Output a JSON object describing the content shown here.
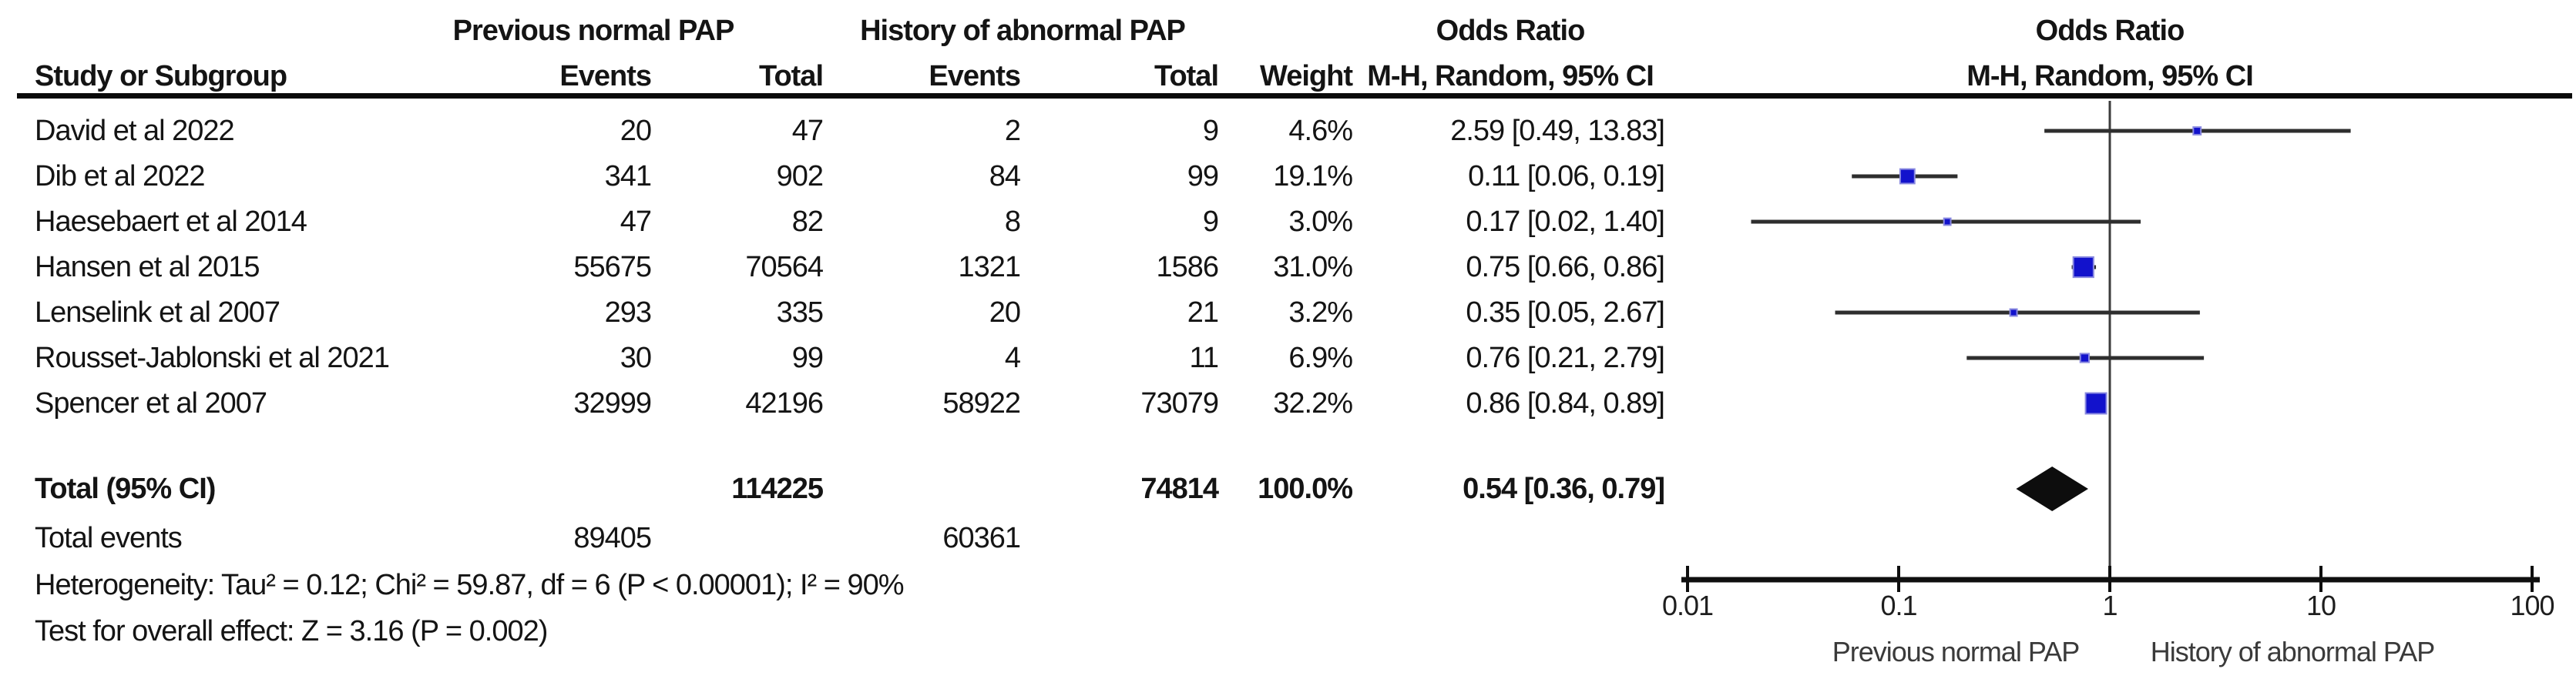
{
  "header": {
    "study_col": "Study or Subgroup",
    "group1_title": "Previous normal PAP",
    "group2_title": "History of abnormal PAP",
    "events_col1": "Events",
    "total_col1": "Total",
    "events_col2": "Events",
    "total_col2": "Total",
    "weight_col": "Weight",
    "or_text_title": "Odds Ratio",
    "or_text_sub": "M-H, Random, 95% CI",
    "or_plot_title": "Odds Ratio",
    "or_plot_sub": "M-H, Random, 95% CI"
  },
  "rows": [
    {
      "study": "David et al 2022",
      "ev1": "20",
      "t1": "47",
      "ev2": "2",
      "t2": "9",
      "weight": "4.6%",
      "or": "2.59 [0.49, 13.83]"
    },
    {
      "study": "Dib et al 2022",
      "ev1": "341",
      "t1": "902",
      "ev2": "84",
      "t2": "99",
      "weight": "19.1%",
      "or": "0.11 [0.06, 0.19]"
    },
    {
      "study": "Haesebaert et al 2014",
      "ev1": "47",
      "t1": "82",
      "ev2": "8",
      "t2": "9",
      "weight": "3.0%",
      "or": "0.17 [0.02, 1.40]"
    },
    {
      "study": "Hansen et al 2015",
      "ev1": "55675",
      "t1": "70564",
      "ev2": "1321",
      "t2": "1586",
      "weight": "31.0%",
      "or": "0.75 [0.66, 0.86]"
    },
    {
      "study": "Lenselink et al 2007",
      "ev1": "293",
      "t1": "335",
      "ev2": "20",
      "t2": "21",
      "weight": "3.2%",
      "or": "0.35 [0.05, 2.67]"
    },
    {
      "study": "Rousset-Jablonski et al 2021",
      "ev1": "30",
      "t1": "99",
      "ev2": "4",
      "t2": "11",
      "weight": "6.9%",
      "or": "0.76 [0.21, 2.79]"
    },
    {
      "study": "Spencer et al 2007",
      "ev1": "32999",
      "t1": "42196",
      "ev2": "58922",
      "t2": "73079",
      "weight": "32.2%",
      "or": "0.86 [0.84, 0.89]"
    }
  ],
  "totals": {
    "label": "Total (95% CI)",
    "t1": "114225",
    "t2": "74814",
    "weight": "100.0%",
    "or": "0.54 [0.36, 0.79]",
    "events_label": "Total events",
    "ev1": "89405",
    "ev2": "60361",
    "heterogeneity": "Heterogeneity: Tau² = 0.12; Chi² = 59.87, df = 6 (P < 0.00001); I² = 90%",
    "overall_effect": "Test for overall effect: Z = 3.16 (P = 0.002)"
  },
  "axis": {
    "tick_labels": [
      "0.01",
      "0.1",
      "1",
      "10",
      "100"
    ],
    "left_label": "Previous normal PAP",
    "right_label": "History of abnormal PAP"
  },
  "colors": {
    "square_fill": "#1212cc",
    "square_border": "#8a8ae0",
    "ci_line": "#2e2e2e",
    "axis_line": "#0f0f0f",
    "diamond": "#0d0d0d",
    "null_line": "#3c3c3c"
  },
  "chart_data": {
    "type": "forest",
    "x_scale": "log10",
    "x_range": [
      0.01,
      100
    ],
    "ticks": [
      0.01,
      0.1,
      1,
      10,
      100
    ],
    "effect_measure": "Odds Ratio, M-H, Random, 95% CI",
    "studies": [
      {
        "name": "David et al 2022",
        "or": 2.59,
        "ci_low": 0.49,
        "ci_high": 13.83,
        "weight_pct": 4.6
      },
      {
        "name": "Dib et al 2022",
        "or": 0.11,
        "ci_low": 0.06,
        "ci_high": 0.19,
        "weight_pct": 19.1
      },
      {
        "name": "Haesebaert et al 2014",
        "or": 0.17,
        "ci_low": 0.02,
        "ci_high": 1.4,
        "weight_pct": 3.0
      },
      {
        "name": "Hansen et al 2015",
        "or": 0.75,
        "ci_low": 0.66,
        "ci_high": 0.86,
        "weight_pct": 31.0
      },
      {
        "name": "Lenselink et al 2007",
        "or": 0.35,
        "ci_low": 0.05,
        "ci_high": 2.67,
        "weight_pct": 3.2
      },
      {
        "name": "Rousset-Jablonski et al 2021",
        "or": 0.76,
        "ci_low": 0.21,
        "ci_high": 2.79,
        "weight_pct": 6.9
      },
      {
        "name": "Spencer et al 2007",
        "or": 0.86,
        "ci_low": 0.84,
        "ci_high": 0.89,
        "weight_pct": 32.2
      }
    ],
    "total": {
      "or": 0.54,
      "ci_low": 0.36,
      "ci_high": 0.79,
      "weight_pct": 100.0
    }
  }
}
